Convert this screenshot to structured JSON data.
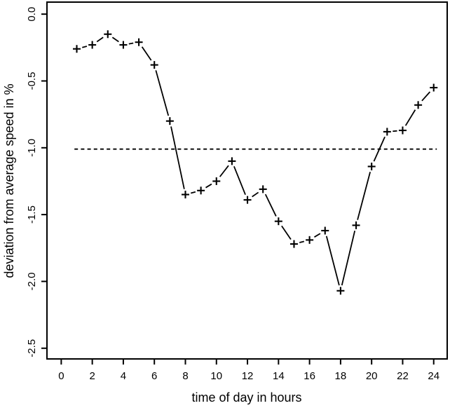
{
  "figure": {
    "background": "#ffffff"
  },
  "chart_data": {
    "type": "line",
    "title": "",
    "xlabel": "time of day in hours",
    "ylabel": "deviation from average speed in %",
    "x": [
      1,
      2,
      3,
      4,
      5,
      6,
      7,
      8,
      9,
      10,
      11,
      12,
      13,
      14,
      15,
      16,
      17,
      18,
      19,
      20,
      21,
      22,
      23,
      24
    ],
    "y": [
      -0.26,
      -0.23,
      -0.15,
      -0.23,
      -0.21,
      -0.38,
      -0.8,
      -1.35,
      -1.32,
      -1.25,
      -1.1,
      -1.39,
      -1.31,
      -1.55,
      -1.72,
      -1.69,
      -1.62,
      -2.07,
      -1.58,
      -1.14,
      -0.88,
      -0.87,
      -0.68,
      -0.55
    ],
    "marker": "plus",
    "line_between_points": "solid-with-gaps-around-markers",
    "reference_line": {
      "y": -1.01,
      "style": "dashed",
      "x_start": 0.85,
      "x_end": 24.2
    },
    "x_ticks": {
      "values": [
        0,
        2,
        4,
        6,
        8,
        10,
        12,
        14,
        16,
        18,
        20,
        22,
        24
      ],
      "labels": [
        "0",
        "2",
        "4",
        "6",
        "8",
        "10",
        "12",
        "14",
        "16",
        "18",
        "20",
        "22",
        "24"
      ]
    },
    "y_ticks": {
      "values": [
        0.0,
        -0.5,
        -1.0,
        -1.5,
        -2.0,
        -2.5
      ],
      "labels": [
        "0.0",
        "-0.5",
        "-1.0",
        "-1.5",
        "-2.0",
        "-2.5"
      ]
    },
    "xlim": [
      -0.92,
      24.87
    ],
    "ylim": [
      -2.58,
      0.09
    ],
    "grid": false,
    "legend": "none",
    "colors": {
      "stroke": "#000000",
      "background": "#ffffff"
    }
  }
}
